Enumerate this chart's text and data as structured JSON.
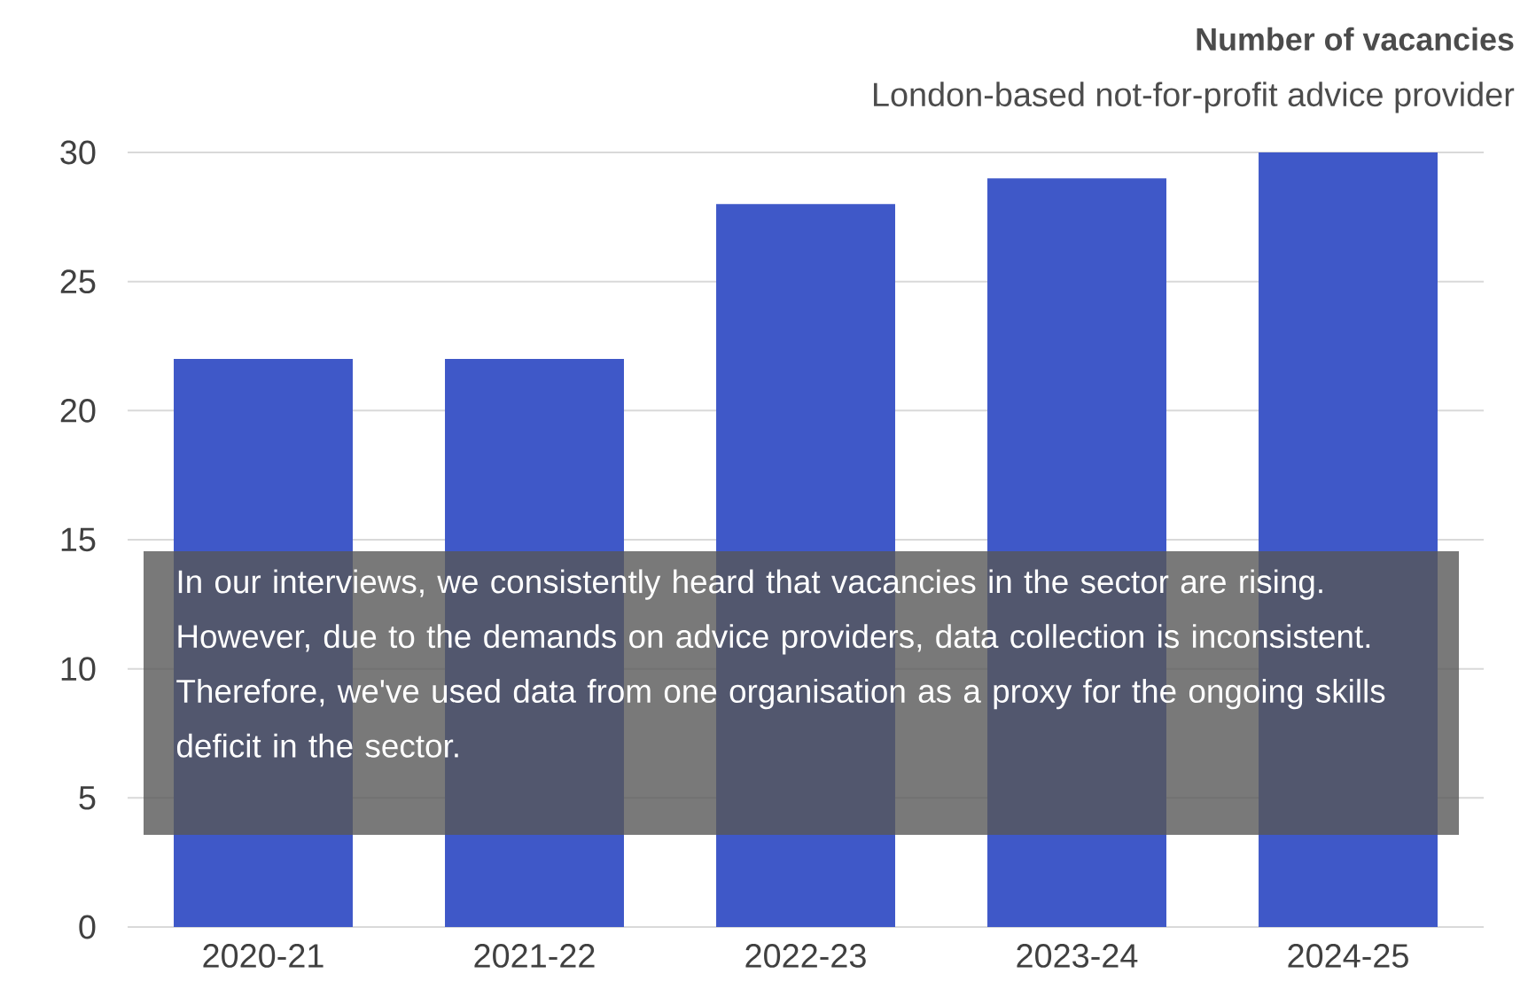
{
  "chart_data": {
    "type": "bar",
    "title": "Number of vacancies",
    "subtitle": "London-based not-for-profit advice provider",
    "categories": [
      "2020-21",
      "2021-22",
      "2022-23",
      "2023-24",
      "2024-25"
    ],
    "values": [
      22,
      22,
      28,
      29,
      30
    ],
    "color": "#3f58c8",
    "ylim": [
      0,
      30
    ],
    "yticks": [
      0,
      5,
      10,
      15,
      20,
      25,
      30
    ],
    "grid": "y",
    "annotations": [
      "In our interviews, we consistently heard that vacancies in the sector are rising. However, due to the demands on advice providers, data collection is inconsistent. Therefore, we've used data from one organisation as a proxy for the ongoing skills deficit in the sector."
    ]
  }
}
